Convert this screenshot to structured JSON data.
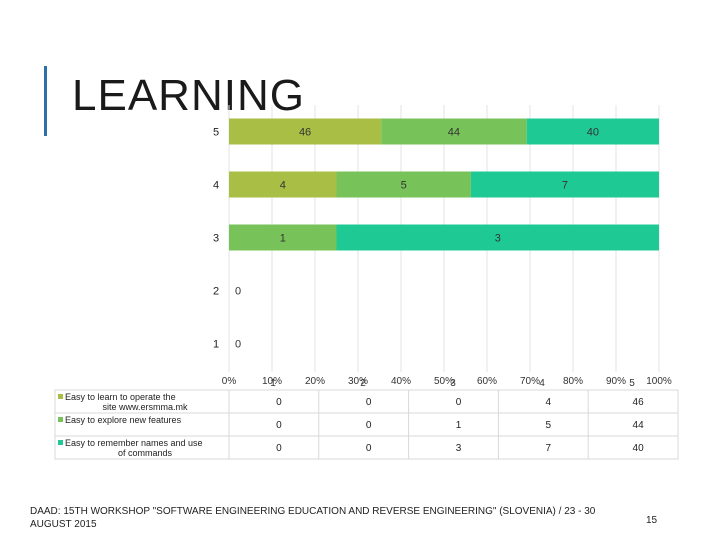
{
  "slide": {
    "title": "LEARNING",
    "footer": "DAAD: 15TH WORKSHOP \"SOFTWARE ENGINEERING EDUCATION AND REVERSE ENGINEERING\" (SLOVENIA) / 23 - 30 AUGUST 2015",
    "page_number": "15"
  },
  "chart_data": {
    "type": "bar",
    "orientation": "horizontal-stacked-100",
    "categories": [
      "5",
      "4",
      "3",
      "2",
      "1"
    ],
    "x_ticks": [
      "0%",
      "10%",
      "20%",
      "30%",
      "40%",
      "50%",
      "60%",
      "70%",
      "80%",
      "90%",
      "100%"
    ],
    "stray_tick_labels": [
      "1",
      "2",
      "3",
      "4",
      "5"
    ],
    "series": [
      {
        "name": "Easy to learn to operate the site www.ersmma.mk",
        "color": "#a8be44",
        "values": [
          46,
          4,
          0,
          0,
          0
        ]
      },
      {
        "name": "Easy to explore new features",
        "color": "#78c25a",
        "values": [
          44,
          5,
          1,
          0,
          0
        ]
      },
      {
        "name": "Easy to remember names and use of commands",
        "color": "#1fc993",
        "values": [
          40,
          7,
          3,
          0,
          0
        ]
      }
    ],
    "table": {
      "columns": [
        "1",
        "2",
        "3",
        "4",
        "5"
      ],
      "rows": [
        {
          "label": "Easy to learn to operate the site www.ersmma.mk",
          "values": [
            "0",
            "0",
            "0",
            "4",
            "46"
          ]
        },
        {
          "label": "Easy to explore new features",
          "values": [
            "0",
            "0",
            "1",
            "5",
            "44"
          ]
        },
        {
          "label": "Easy to remember names and use of commands",
          "values": [
            "0",
            "0",
            "3",
            "7",
            "40"
          ]
        }
      ]
    }
  }
}
